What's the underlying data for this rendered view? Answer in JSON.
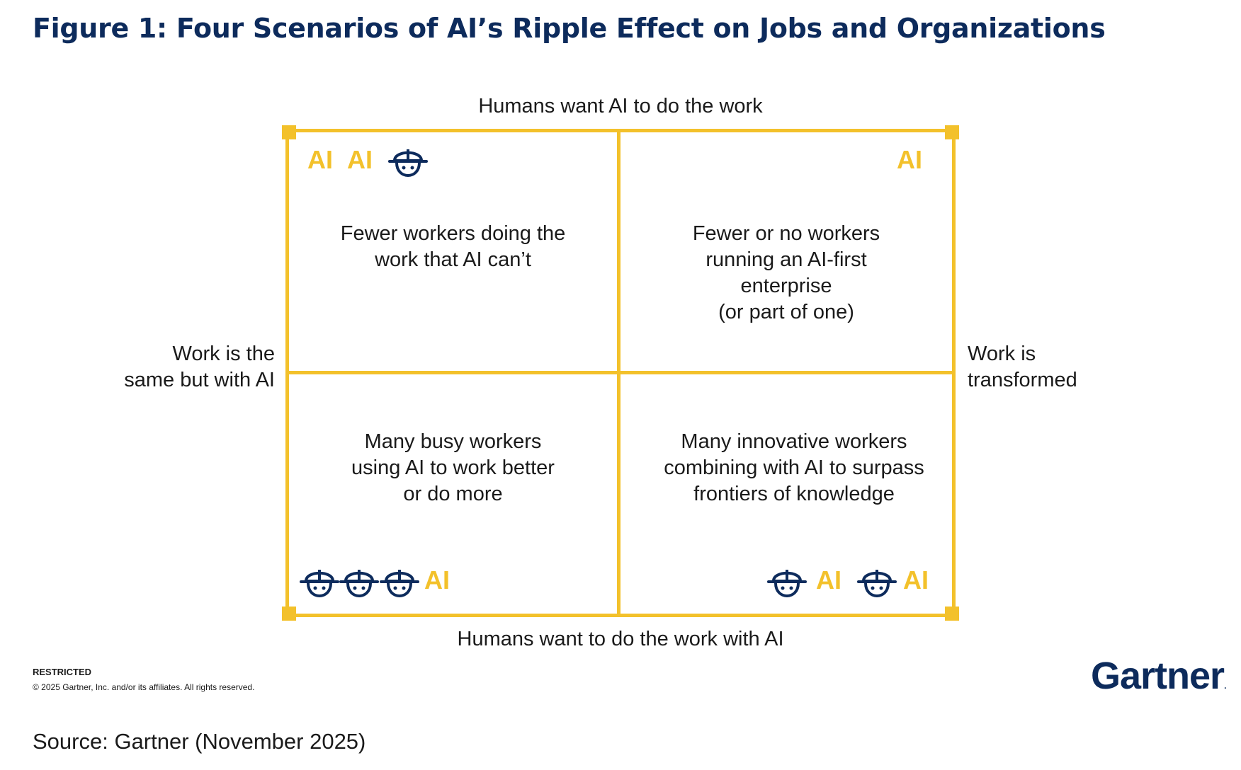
{
  "title": "Figure 1: Four Scenarios of AI’s Ripple Effect on Jobs and Organizations",
  "axes": {
    "top": "Humans want AI to do the work",
    "bottom": "Humans want to do the work with AI",
    "left": [
      "Work is the",
      "same but with AI"
    ],
    "right": [
      "Work is",
      "transformed"
    ]
  },
  "ai_label": "AI",
  "quadrants": {
    "top_left": {
      "lines": [
        "Fewer workers doing the",
        "work that AI can’t"
      ],
      "icons": [
        "AI",
        "AI",
        "worker"
      ]
    },
    "top_right": {
      "lines": [
        "Fewer or no workers",
        "running an AI-first",
        "enterprise",
        "(or part of one)"
      ],
      "icons": [
        "AI"
      ]
    },
    "bottom_left": {
      "lines": [
        "Many busy workers",
        "using AI to work better",
        "or do more"
      ],
      "icons": [
        "worker",
        "worker",
        "worker",
        "AI"
      ]
    },
    "bottom_right": {
      "lines": [
        "Many innovative workers",
        "combining with AI to surpass",
        "frontiers of knowledge"
      ],
      "icons": [
        "worker",
        "AI",
        "worker",
        "AI"
      ]
    }
  },
  "footer": {
    "restricted": "RESTRICTED",
    "copyright": "© 2025 Gartner, Inc. and/or its affiliates. All rights reserved."
  },
  "brand": {
    "name": "Gartner",
    "mark": "."
  },
  "source": "Source: Gartner (November 2025)",
  "colors": {
    "accent": "#f3c12b",
    "navy": "#0d2b5c",
    "text": "#1a1a1a"
  }
}
